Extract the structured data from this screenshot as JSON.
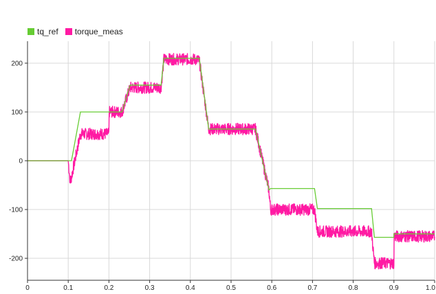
{
  "chart_data": {
    "type": "line",
    "xlim": [
      0,
      1
    ],
    "ylim": [
      -245,
      245
    ],
    "x_ticks": [
      0,
      0.1,
      0.2,
      0.3,
      0.4,
      0.5,
      0.6,
      0.7,
      0.8,
      0.9,
      1
    ],
    "x_tick_labels": [
      "0",
      "0.1",
      "0.2",
      "0.3",
      "0.4",
      "0.5",
      "0.6",
      "0.7",
      "0.8",
      "0.9",
      "1.0"
    ],
    "y_ticks": [
      200,
      100,
      0,
      -100,
      -200
    ],
    "y_tick_labels": [
      "200",
      "100",
      "0",
      "-100",
      "-200"
    ],
    "grid": true,
    "legend_position": "top-left",
    "series": [
      {
        "name": "tq_ref",
        "color": "#66cc33",
        "x": [
          0,
          0.108,
          0.13,
          0.2,
          0.2,
          0.232,
          0.252,
          0.328,
          0.335,
          0.41,
          0.422,
          0.445,
          0.56,
          0.593,
          0.597,
          0.705,
          0.712,
          0.845,
          0.852,
          0.9,
          0.9,
          1.0
        ],
        "y": [
          0,
          0,
          100,
          100,
          100,
          100,
          155,
          155,
          210,
          210,
          210,
          65,
          65,
          -60,
          -57,
          -57,
          -98,
          -98,
          -157,
          -157,
          -150,
          -150
        ]
      },
      {
        "name": "torque_meas",
        "color": "#ff1aa3",
        "noise_amplitude": 12,
        "x": [
          0,
          0.1,
          0.105,
          0.13,
          0.2,
          0.2,
          0.232,
          0.252,
          0.328,
          0.335,
          0.41,
          0.422,
          0.445,
          0.56,
          0.593,
          0.597,
          0.705,
          0.712,
          0.845,
          0.852,
          0.9,
          0.9,
          1.0
        ],
        "y": [
          0,
          0,
          -45,
          55,
          55,
          100,
          100,
          150,
          150,
          208,
          208,
          205,
          65,
          65,
          -60,
          -100,
          -100,
          -145,
          -145,
          -210,
          -210,
          -155,
          -155
        ]
      }
    ]
  }
}
